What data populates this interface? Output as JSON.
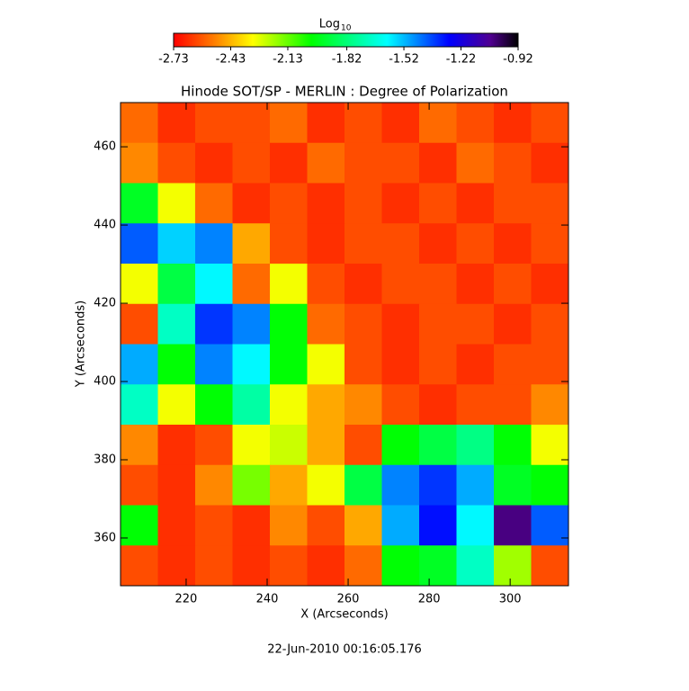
{
  "chart_data": {
    "type": "heatmap",
    "title": "Hinode SOT/SP - MERLIN : Degree of Polarization",
    "xlabel": "X (Arcseconds)",
    "ylabel": "Y (Arcseconds)",
    "footer": "22-Jun-2010 00:16:05.176",
    "xlim": [
      203.8,
      314.4
    ],
    "ylim": [
      347.8,
      471.3
    ],
    "xticks": [
      220,
      240,
      260,
      280,
      300
    ],
    "yticks": [
      360,
      380,
      400,
      420,
      440,
      460
    ],
    "colorbar": {
      "label": "Log",
      "label_subscript": "10",
      "range": [
        -2.73,
        -0.92
      ],
      "ticks": [
        -2.73,
        -2.43,
        -2.13,
        -1.82,
        -1.52,
        -1.22,
        -0.92
      ],
      "colors": [
        [
          0,
          "#ff0000"
        ],
        [
          0.12,
          "#ff8000"
        ],
        [
          0.23,
          "#ffff00"
        ],
        [
          0.4,
          "#00ff00"
        ],
        [
          0.62,
          "#00ffff"
        ],
        [
          0.8,
          "#0000ff"
        ],
        [
          0.92,
          "#500090"
        ],
        [
          1,
          "#000000"
        ]
      ]
    },
    "z": [
      [
        -2.55,
        -2.65,
        -2.6,
        -2.6,
        -2.55,
        -2.65,
        -2.6,
        -2.65,
        -2.55,
        -2.6,
        -2.65,
        -2.6
      ],
      [
        -2.5,
        -2.6,
        -2.65,
        -2.6,
        -2.65,
        -2.55,
        -2.6,
        -2.6,
        -2.65,
        -2.55,
        -2.6,
        -2.65
      ],
      [
        -1.95,
        -2.3,
        -2.55,
        -2.65,
        -2.6,
        -2.65,
        -2.6,
        -2.65,
        -2.6,
        -2.65,
        -2.6,
        -2.6
      ],
      [
        -1.4,
        -1.55,
        -1.45,
        -2.45,
        -2.6,
        -2.65,
        -2.6,
        -2.6,
        -2.65,
        -2.6,
        -2.65,
        -2.6
      ],
      [
        -2.3,
        -1.9,
        -1.6,
        -2.55,
        -2.3,
        -2.6,
        -2.65,
        -2.6,
        -2.6,
        -2.65,
        -2.6,
        -2.65
      ],
      [
        -2.6,
        -1.7,
        -1.35,
        -1.45,
        -2.0,
        -2.55,
        -2.6,
        -2.65,
        -2.6,
        -2.6,
        -2.65,
        -2.6
      ],
      [
        -1.5,
        -2.0,
        -1.45,
        -1.6,
        -2.0,
        -2.3,
        -2.6,
        -2.65,
        -2.6,
        -2.65,
        -2.6,
        -2.6
      ],
      [
        -1.7,
        -2.3,
        -2.0,
        -1.75,
        -2.3,
        -2.45,
        -2.5,
        -2.6,
        -2.65,
        -2.6,
        -2.6,
        -2.5
      ],
      [
        -2.5,
        -2.65,
        -2.6,
        -2.3,
        -2.25,
        -2.45,
        -2.6,
        -2.0,
        -1.9,
        -1.8,
        -2.0,
        -2.3
      ],
      [
        -2.6,
        -2.65,
        -2.5,
        -2.15,
        -2.45,
        -2.3,
        -1.9,
        -1.45,
        -1.35,
        -1.5,
        -1.95,
        -2.0
      ],
      [
        -2.0,
        -2.65,
        -2.6,
        -2.65,
        -2.5,
        -2.6,
        -2.45,
        -1.5,
        -1.3,
        -1.6,
        -1.05,
        -1.4
      ],
      [
        -2.6,
        -2.65,
        -2.6,
        -2.65,
        -2.6,
        -2.65,
        -2.55,
        -2.0,
        -1.95,
        -1.7,
        -2.2,
        -2.6
      ]
    ]
  }
}
